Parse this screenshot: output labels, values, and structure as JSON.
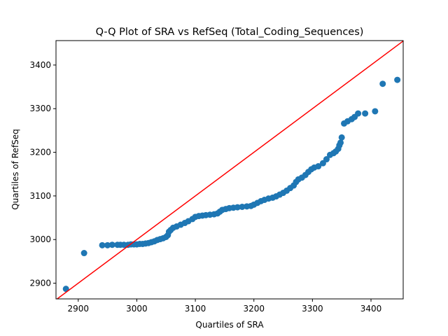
{
  "chart_data": {
    "type": "scatter",
    "title": "Q-Q Plot of SRA vs RefSeq (Total_Coding_Sequences)",
    "xlabel": "Quartiles of SRA",
    "ylabel": "Quartiles of RefSeq",
    "xlim": [
      2862,
      3455
    ],
    "ylim": [
      2864,
      3456
    ],
    "xticks": [
      2900,
      3000,
      3100,
      3200,
      3300,
      3400
    ],
    "yticks": [
      2900,
      3000,
      3100,
      3200,
      3300,
      3400
    ],
    "grid": false,
    "point_color": "#1f77b4",
    "reference_line_color": "#ff0000",
    "reference_line": [
      [
        2862,
        2862
      ],
      [
        3456,
        3456
      ]
    ],
    "series": [
      {
        "points": [
          [
            2879,
            2887
          ],
          [
            2910,
            2969
          ],
          [
            2941,
            2987
          ],
          [
            2950,
            2987
          ],
          [
            2958,
            2988
          ],
          [
            2967,
            2988
          ],
          [
            2972,
            2988
          ],
          [
            2978,
            2988
          ],
          [
            2985,
            2988
          ],
          [
            2990,
            2989
          ],
          [
            2995,
            2989
          ],
          [
            3000,
            2989
          ],
          [
            3005,
            2990
          ],
          [
            3010,
            2990
          ],
          [
            3015,
            2991
          ],
          [
            3020,
            2992
          ],
          [
            3025,
            2994
          ],
          [
            3030,
            2996
          ],
          [
            3035,
            2999
          ],
          [
            3040,
            3001
          ],
          [
            3045,
            3003
          ],
          [
            3050,
            3006
          ],
          [
            3053,
            3010
          ],
          [
            3055,
            3018
          ],
          [
            3058,
            3022
          ],
          [
            3062,
            3027
          ],
          [
            3068,
            3030
          ],
          [
            3075,
            3034
          ],
          [
            3082,
            3038
          ],
          [
            3088,
            3042
          ],
          [
            3095,
            3047
          ],
          [
            3100,
            3052
          ],
          [
            3106,
            3054
          ],
          [
            3112,
            3055
          ],
          [
            3118,
            3056
          ],
          [
            3125,
            3057
          ],
          [
            3132,
            3058
          ],
          [
            3138,
            3060
          ],
          [
            3142,
            3064
          ],
          [
            3146,
            3068
          ],
          [
            3152,
            3070
          ],
          [
            3158,
            3072
          ],
          [
            3165,
            3073
          ],
          [
            3172,
            3074
          ],
          [
            3180,
            3075
          ],
          [
            3188,
            3076
          ],
          [
            3195,
            3077
          ],
          [
            3200,
            3080
          ],
          [
            3206,
            3084
          ],
          [
            3212,
            3088
          ],
          [
            3218,
            3091
          ],
          [
            3225,
            3094
          ],
          [
            3232,
            3096
          ],
          [
            3238,
            3099
          ],
          [
            3244,
            3103
          ],
          [
            3250,
            3107
          ],
          [
            3256,
            3112
          ],
          [
            3262,
            3118
          ],
          [
            3268,
            3124
          ],
          [
            3272,
            3132
          ],
          [
            3276,
            3138
          ],
          [
            3282,
            3142
          ],
          [
            3288,
            3148
          ],
          [
            3293,
            3155
          ],
          [
            3298,
            3161
          ],
          [
            3303,
            3165
          ],
          [
            3310,
            3168
          ],
          [
            3318,
            3175
          ],
          [
            3324,
            3184
          ],
          [
            3330,
            3194
          ],
          [
            3336,
            3198
          ],
          [
            3340,
            3202
          ],
          [
            3344,
            3208
          ],
          [
            3346,
            3216
          ],
          [
            3348,
            3222
          ],
          [
            3350,
            3234
          ],
          [
            3354,
            3266
          ],
          [
            3360,
            3271
          ],
          [
            3367,
            3276
          ],
          [
            3372,
            3281
          ],
          [
            3378,
            3289
          ],
          [
            3390,
            3289
          ],
          [
            3407,
            3294
          ],
          [
            3420,
            3357
          ],
          [
            3445,
            3366
          ]
        ]
      }
    ]
  }
}
